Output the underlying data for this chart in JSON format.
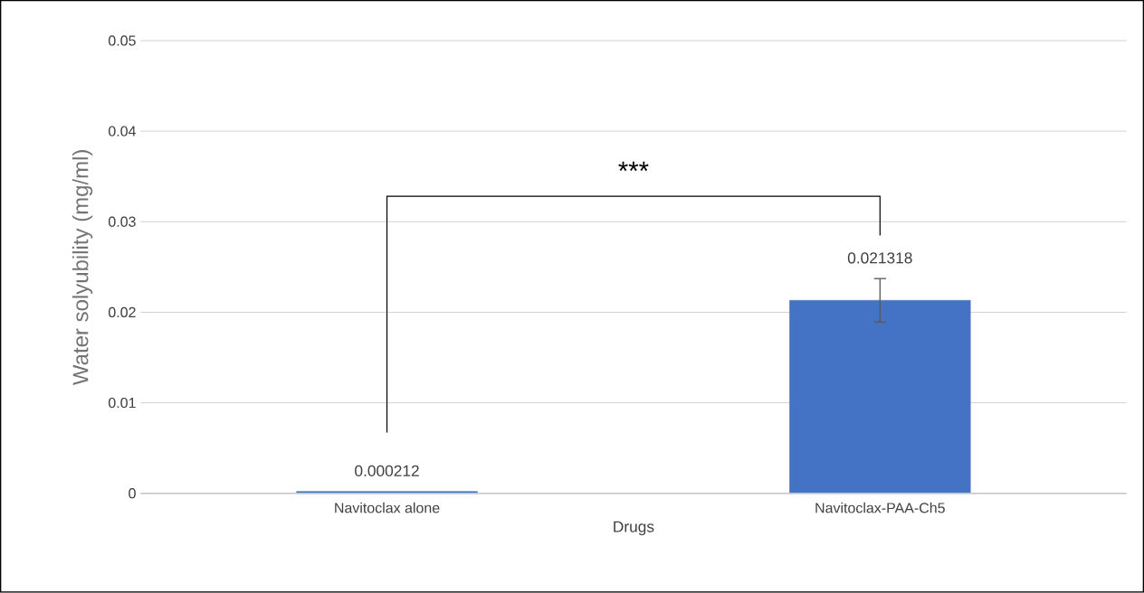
{
  "chart_data": {
    "type": "bar",
    "xlabel": "Drugs",
    "ylabel": "Water solyubility (mg/ml)",
    "categories": [
      "Navitoclax alone",
      "Navitoclax-PAA-Ch5"
    ],
    "values": [
      0.000212,
      0.021318
    ],
    "errors": [
      null,
      0.0024
    ],
    "color": "#4472c4",
    "ylim": [
      0,
      0.05
    ],
    "yticks": [
      0,
      0.01,
      0.02,
      0.03,
      0.04,
      0.05
    ],
    "grid": "y",
    "data_labels": true,
    "annotations": [
      "***"
    ]
  }
}
